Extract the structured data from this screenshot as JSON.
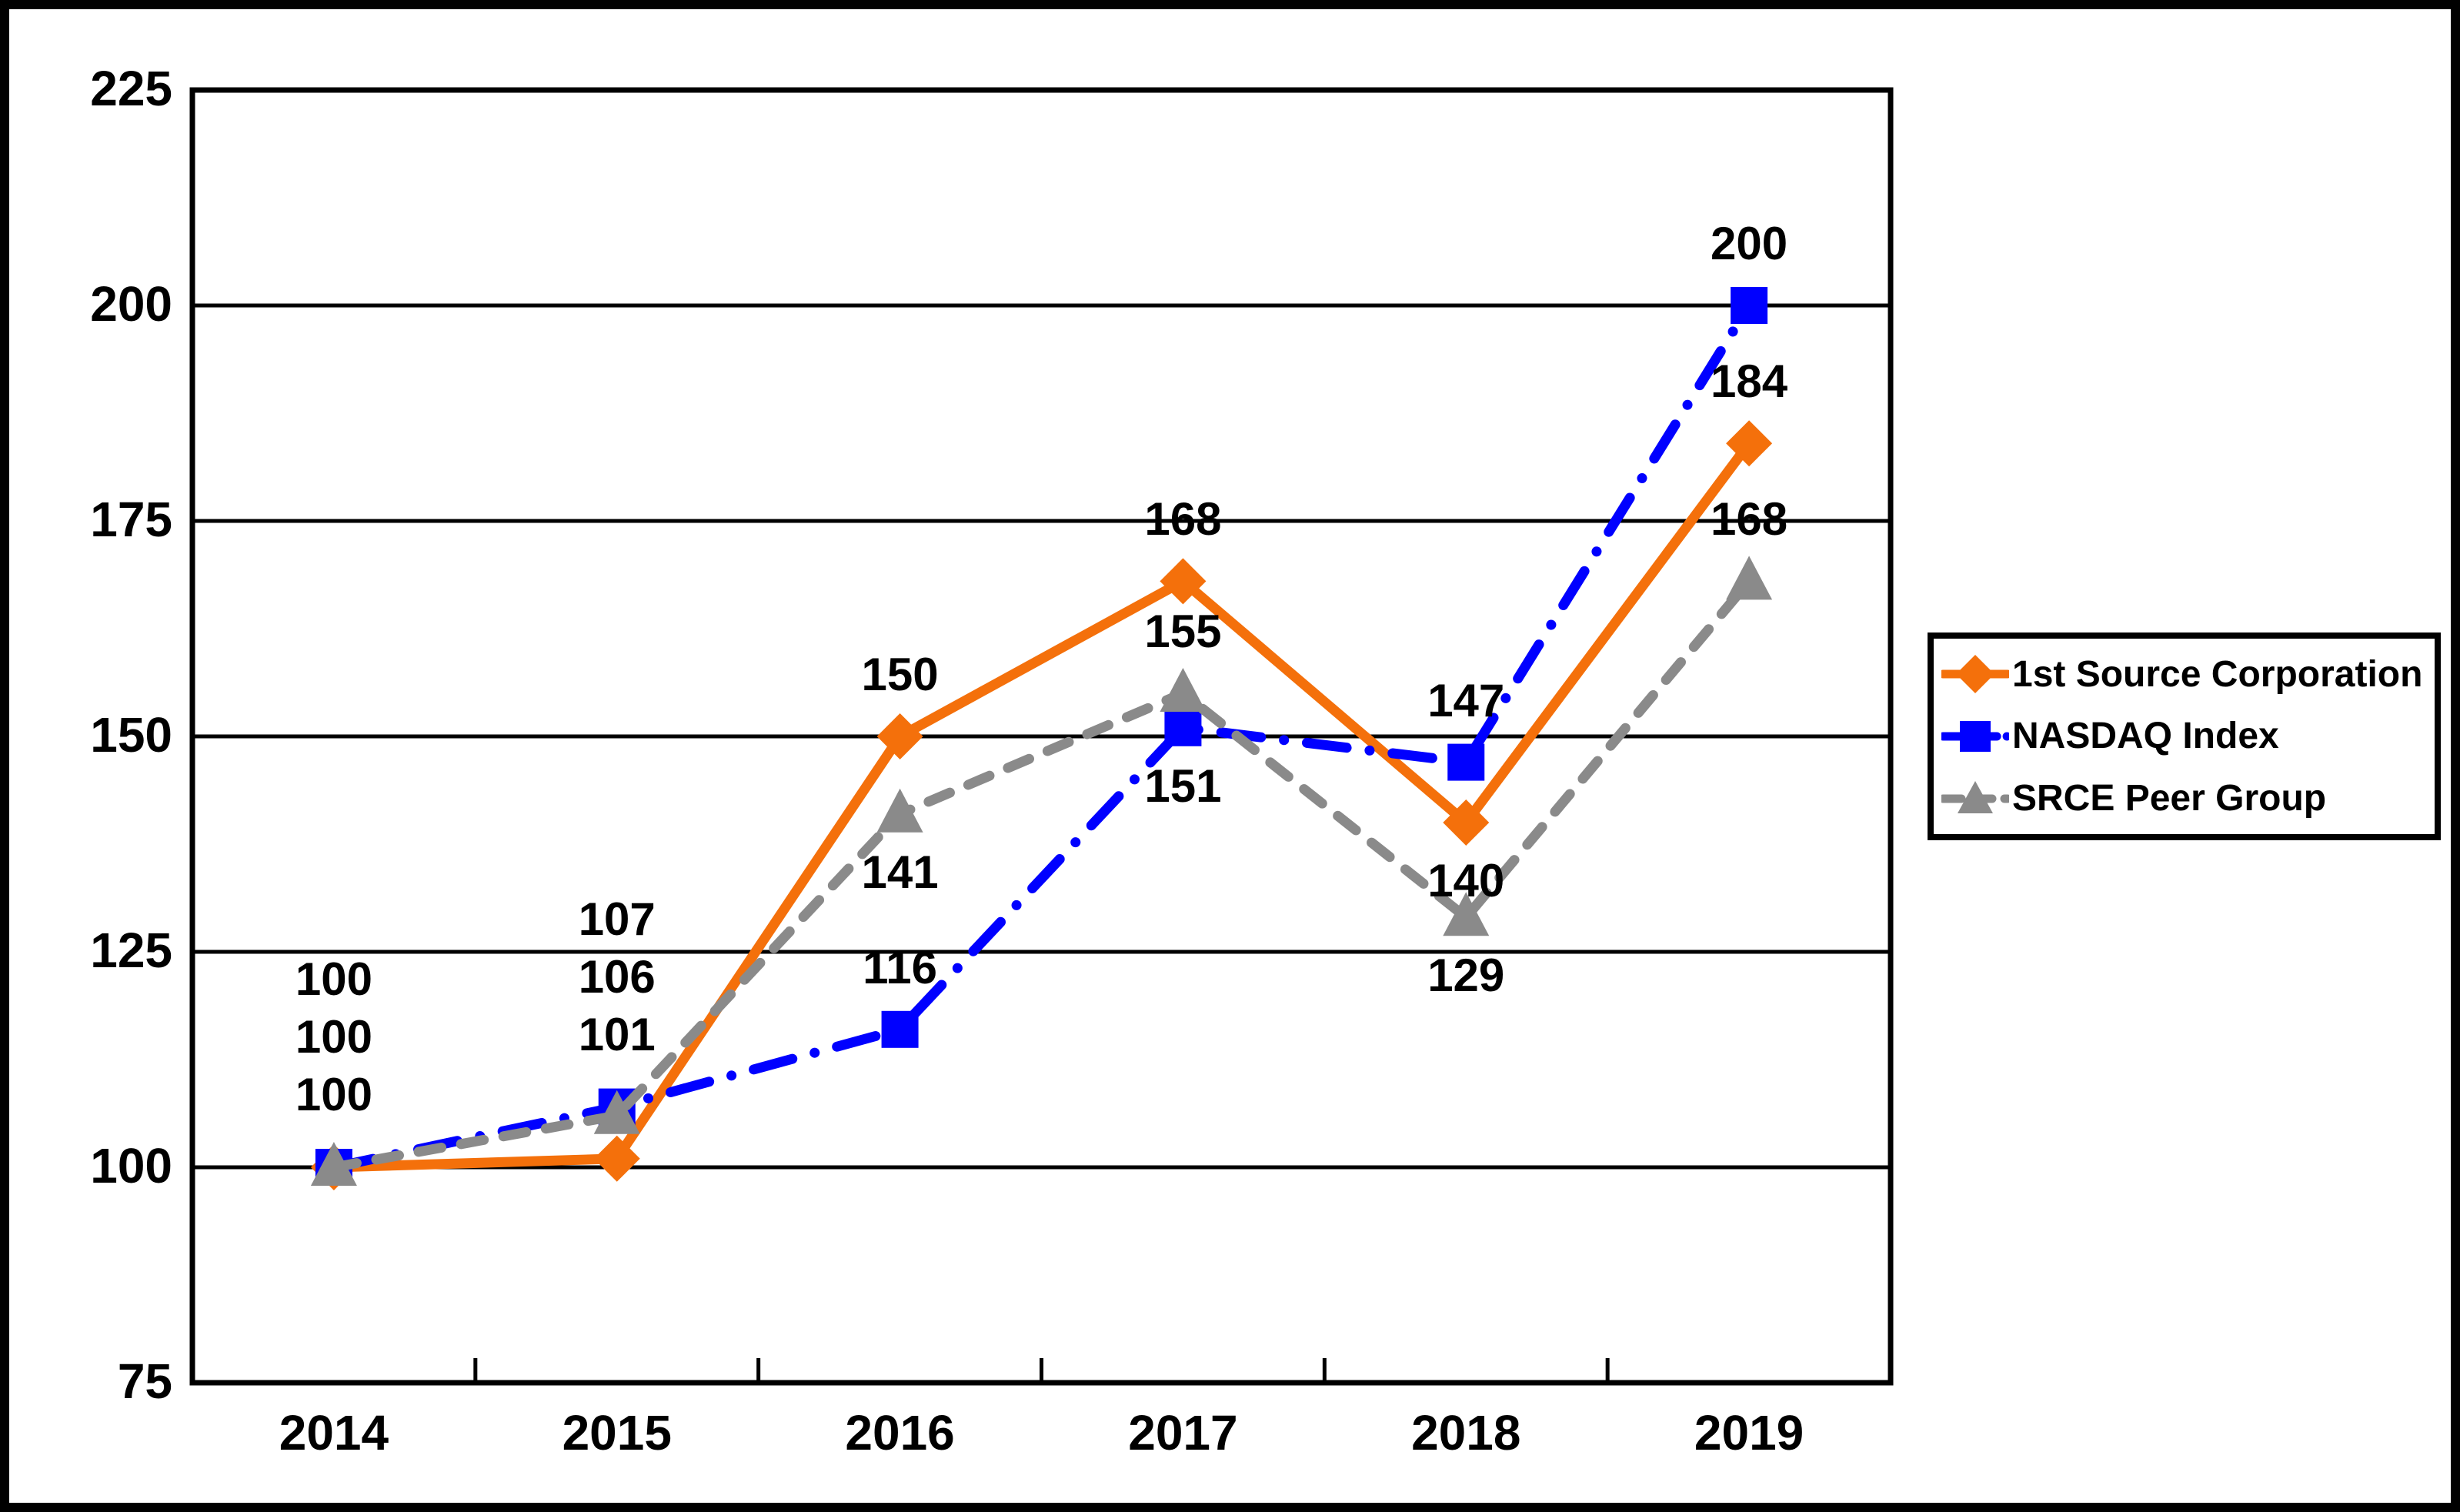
{
  "chart_data": {
    "type": "line",
    "title": "",
    "categories": [
      "2014",
      "2015",
      "2016",
      "2017",
      "2018",
      "2019"
    ],
    "series": [
      {
        "name": "1st Source Corporation",
        "marker": "diamond",
        "color": "#F4700B",
        "line_style": "solid",
        "values": [
          100,
          101,
          150,
          168,
          140,
          184
        ]
      },
      {
        "name": "NASDAQ Index",
        "marker": "square",
        "color": "#0000FF",
        "line_style": "dash-dot",
        "values": [
          100,
          107,
          116,
          151,
          147,
          200
        ]
      },
      {
        "name": "SRCE Peer Group",
        "marker": "triangle",
        "color": "#8A8A8A",
        "line_style": "dashed",
        "values": [
          100,
          106,
          141,
          155,
          129,
          168
        ]
      }
    ],
    "ylim": [
      75,
      225
    ],
    "yticks": [
      "75",
      "100",
      "125",
      "150",
      "175",
      "200",
      "225"
    ],
    "grid": "horizontal-on",
    "legend_position": "right",
    "data_labels_shown": true,
    "label_placement": {
      "stacked_columns": [
        0,
        1
      ],
      "per_series": [
        [
          "stack",
          "stack",
          "above",
          "above",
          "below",
          "above"
        ],
        [
          "stack",
          "stack",
          "above",
          "below",
          "above",
          "above"
        ],
        [
          "stack",
          "stack",
          "below",
          "above",
          "below",
          "above"
        ]
      ]
    },
    "colors": {
      "axis": "#000000",
      "gridline": "#000000",
      "text": "#000000",
      "background": "#FFFFFF"
    }
  },
  "legend": {
    "items": [
      {
        "label": "1st Source Corporation",
        "icon": "diamond-marker-icon"
      },
      {
        "label": "NASDAQ Index",
        "icon": "square-marker-icon"
      },
      {
        "label": "SRCE Peer Group",
        "icon": "triangle-marker-icon"
      }
    ]
  }
}
